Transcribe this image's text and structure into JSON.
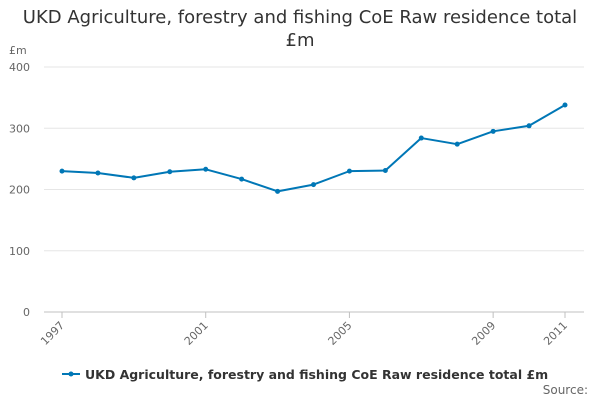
{
  "chart_data": {
    "type": "line",
    "title": "UKD Agriculture, forestry and fishing CoE Raw residence total £m",
    "ylabel": "£m",
    "xlabel": "",
    "x": [
      1997,
      1998,
      1999,
      2000,
      2001,
      2002,
      2003,
      2004,
      2005,
      2006,
      2007,
      2008,
      2009,
      2010,
      2011
    ],
    "x_tick_labels": [
      "1997",
      "2001",
      "2005",
      "2009",
      "2011"
    ],
    "y_tick_labels": [
      "0",
      "100",
      "200",
      "300",
      "400"
    ],
    "xlim": [
      1997,
      2011
    ],
    "ylim": [
      0,
      400
    ],
    "grid": true,
    "legend_position": "bottom",
    "series": [
      {
        "name": "UKD Agriculture, forestry and fishing CoE Raw residence total £m",
        "color": "#0077b6",
        "values": [
          230,
          227,
          219,
          229,
          233,
          217,
          197,
          208,
          230,
          231,
          284,
          274,
          295,
          304,
          338
        ]
      }
    ]
  },
  "source_label": "Source:"
}
